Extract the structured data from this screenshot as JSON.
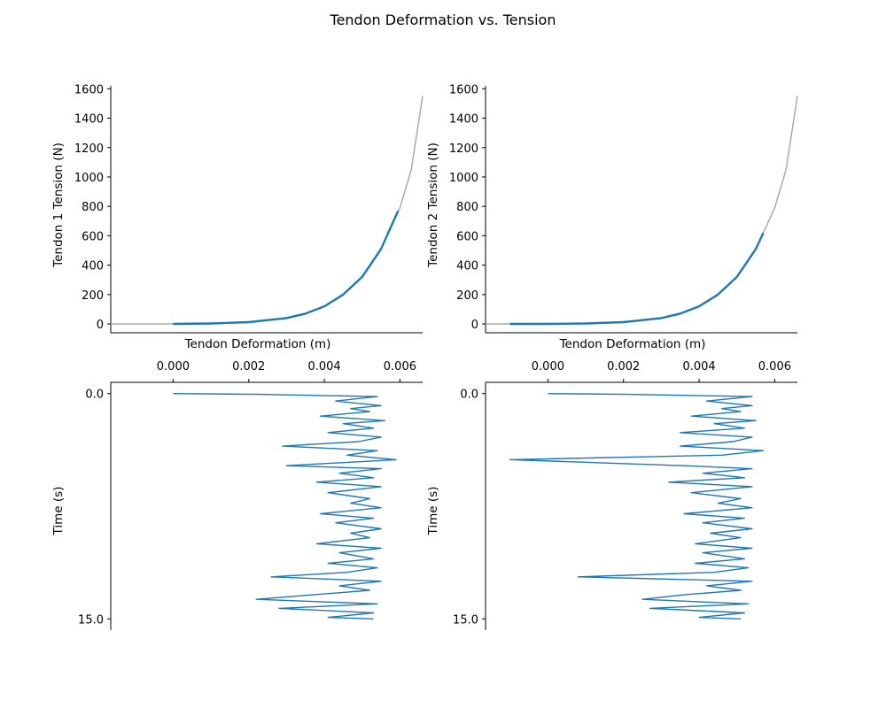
{
  "figure": {
    "title": "Tendon Deformation vs. Tension",
    "colors": {
      "series": "#1f77b4",
      "reference": "#aaaaaa",
      "axis": "#000000"
    }
  },
  "chart_data": [
    {
      "type": "line",
      "panel": "top-left",
      "xlabel": "Tendon Deformation (m)",
      "ylabel": "Tendon 1 Tension (N)",
      "xlim": [
        -0.00165,
        0.0066
      ],
      "ylim": [
        -60,
        1620
      ],
      "xticks": [],
      "yticks": [
        0,
        200,
        400,
        600,
        800,
        1000,
        1200,
        1400,
        1600
      ],
      "series": [
        {
          "role": "reference",
          "color": "#aaaaaa",
          "x": [
            -0.00165,
            0.0,
            0.001,
            0.002,
            0.003,
            0.0035,
            0.004,
            0.0045,
            0.005,
            0.0055,
            0.006,
            0.0063,
            0.0066
          ],
          "y": [
            0,
            0,
            3,
            12,
            40,
            70,
            120,
            200,
            320,
            510,
            790,
            1050,
            1550
          ]
        },
        {
          "role": "measured",
          "color": "#1f77b4",
          "x": [
            0.0,
            0.001,
            0.002,
            0.003,
            0.0035,
            0.004,
            0.0045,
            0.005,
            0.0055,
            0.00595
          ],
          "y": [
            0,
            3,
            12,
            40,
            70,
            120,
            200,
            320,
            510,
            770
          ]
        }
      ]
    },
    {
      "type": "line",
      "panel": "top-right",
      "xlabel": "Tendon Deformation (m)",
      "ylabel": "Tendon 2 Tension (N)",
      "xlim": [
        -0.00165,
        0.0066
      ],
      "ylim": [
        -60,
        1620
      ],
      "xticks": [],
      "yticks": [
        0,
        200,
        400,
        600,
        800,
        1000,
        1200,
        1400,
        1600
      ],
      "series": [
        {
          "role": "reference",
          "color": "#aaaaaa",
          "x": [
            -0.00165,
            0.0,
            0.001,
            0.002,
            0.003,
            0.0035,
            0.004,
            0.0045,
            0.005,
            0.0055,
            0.006,
            0.0063,
            0.0066
          ],
          "y": [
            0,
            0,
            3,
            12,
            40,
            70,
            120,
            200,
            320,
            510,
            790,
            1050,
            1550
          ]
        },
        {
          "role": "measured",
          "color": "#1f77b4",
          "x": [
            -0.001,
            0.0,
            0.001,
            0.002,
            0.003,
            0.0035,
            0.004,
            0.0045,
            0.005,
            0.0055,
            0.0057
          ],
          "y": [
            0,
            0,
            3,
            12,
            40,
            70,
            120,
            200,
            320,
            510,
            620
          ]
        }
      ]
    },
    {
      "type": "line",
      "panel": "bottom-left",
      "xlabel": "",
      "ylabel": "Time (s)",
      "xlim": [
        -0.00165,
        0.0066
      ],
      "ylim": [
        15.75,
        -0.75
      ],
      "xticks": [
        0.0,
        0.002,
        0.004,
        0.006
      ],
      "xtick_labels": [
        "0.000",
        "0.002",
        "0.004",
        "0.006"
      ],
      "yticks": [
        0.0,
        15.0
      ],
      "ytick_labels": [
        "0.0",
        "15.0"
      ],
      "series": [
        {
          "role": "measured",
          "color": "#1f77b4",
          "t": [
            0.0,
            0.05,
            0.2,
            0.5,
            0.8,
            1.0,
            1.2,
            1.5,
            1.8,
            2.0,
            2.3,
            2.6,
            2.9,
            3.2,
            3.5,
            3.8,
            4.1,
            4.4,
            4.8,
            5.0,
            5.3,
            5.6,
            5.9,
            6.2,
            6.6,
            7.0,
            7.3,
            7.6,
            8.0,
            8.3,
            8.6,
            9.0,
            9.3,
            9.6,
            10.0,
            10.3,
            10.6,
            11.0,
            11.3,
            11.6,
            11.9,
            12.2,
            12.5,
            12.8,
            13.1,
            13.4,
            13.7,
            14.0,
            14.3,
            14.6,
            14.9,
            15.0
          ],
          "x": [
            0.0,
            0.0023,
            0.0054,
            0.0043,
            0.0055,
            0.0047,
            0.0052,
            0.0039,
            0.0056,
            0.0045,
            0.0053,
            0.0041,
            0.0055,
            0.0049,
            0.0029,
            0.0054,
            0.0046,
            0.0059,
            0.003,
            0.0055,
            0.0044,
            0.0053,
            0.0038,
            0.0055,
            0.0041,
            0.0052,
            0.0047,
            0.0055,
            0.0039,
            0.0053,
            0.0043,
            0.0055,
            0.0047,
            0.0052,
            0.0038,
            0.0055,
            0.0044,
            0.0053,
            0.0041,
            0.0054,
            0.0046,
            0.0026,
            0.0055,
            0.0044,
            0.0052,
            0.0037,
            0.0022,
            0.0054,
            0.0028,
            0.0053,
            0.0041,
            0.0053
          ]
        }
      ]
    },
    {
      "type": "line",
      "panel": "bottom-right",
      "xlabel": "",
      "ylabel": "Time (s)",
      "xlim": [
        -0.00165,
        0.0066
      ],
      "ylim": [
        15.75,
        -0.75
      ],
      "xticks": [
        0.0,
        0.002,
        0.004,
        0.006
      ],
      "xtick_labels": [
        "0.000",
        "0.002",
        "0.004",
        "0.006"
      ],
      "yticks": [
        0.0,
        15.0
      ],
      "ytick_labels": [
        "0.0",
        "15.0"
      ],
      "series": [
        {
          "role": "measured",
          "color": "#1f77b4",
          "t": [
            0.0,
            0.05,
            0.2,
            0.5,
            0.8,
            1.0,
            1.2,
            1.5,
            1.8,
            2.0,
            2.3,
            2.6,
            2.9,
            3.2,
            3.5,
            3.8,
            4.1,
            4.4,
            4.8,
            5.0,
            5.3,
            5.6,
            5.9,
            6.2,
            6.6,
            7.0,
            7.3,
            7.6,
            8.0,
            8.3,
            8.6,
            9.0,
            9.3,
            9.6,
            10.0,
            10.3,
            10.6,
            11.0,
            11.3,
            11.6,
            11.9,
            12.2,
            12.5,
            12.8,
            13.1,
            13.4,
            13.7,
            14.0,
            14.3,
            14.6,
            14.9,
            15.0
          ],
          "x": [
            0.0,
            0.0021,
            0.0054,
            0.0042,
            0.0054,
            0.0046,
            0.0051,
            0.0038,
            0.0055,
            0.0044,
            0.0052,
            0.0035,
            0.0054,
            0.0049,
            0.0035,
            0.0057,
            0.0046,
            -0.001,
            0.0036,
            0.0054,
            0.0041,
            0.0052,
            0.0032,
            0.0054,
            0.0038,
            0.0051,
            0.0045,
            0.0054,
            0.0036,
            0.0052,
            0.0041,
            0.0054,
            0.0043,
            0.0051,
            0.0039,
            0.0054,
            0.0041,
            0.0052,
            0.0039,
            0.0053,
            0.0044,
            0.0008,
            0.0054,
            0.0042,
            0.0051,
            0.0036,
            0.0025,
            0.0053,
            0.0027,
            0.0052,
            0.004,
            0.0051
          ]
        }
      ]
    }
  ]
}
